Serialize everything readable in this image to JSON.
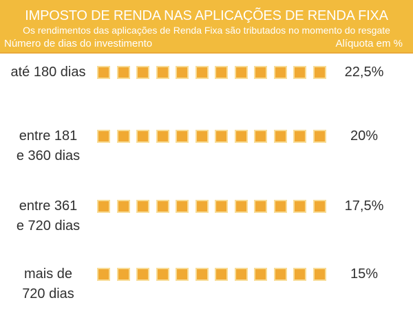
{
  "header": {
    "title": "IMPOSTO DE RENDA NAS APLICAÇÕES DE RENDA FIXA",
    "subtitle": "Os rendimentos das aplicações de Renda Fixa são tributados no momento do resgate",
    "left_axis_label": "Número de dias do investimento",
    "right_axis_label": "Alíquota em %"
  },
  "colors": {
    "band": "#F2BB3D",
    "band_border": "#E9A93A",
    "square_fill": "#F0A933",
    "square_border": "#F8DC96",
    "text_dark": "#303030",
    "text_light": "#FFFFFF"
  },
  "rows": [
    {
      "label_lines": [
        "até 180 dias"
      ],
      "squares": 12,
      "rate": "22,5%"
    },
    {
      "label_lines": [
        "entre 181",
        "e 360 dias"
      ],
      "squares": 12,
      "rate": "20%"
    },
    {
      "label_lines": [
        "entre 361",
        "e 720 dias"
      ],
      "squares": 12,
      "rate": "17,5%"
    },
    {
      "label_lines": [
        "mais de",
        "720 dias"
      ],
      "squares": 12,
      "rate": "15%"
    }
  ],
  "chart_data": {
    "type": "bar",
    "subtype": "pictogram",
    "title": "IMPOSTO DE RENDA NAS APLICAÇÕES DE RENDA FIXA",
    "subtitle": "Os rendimentos das aplicações de Renda Fixa são tributados no momento do resgate",
    "xlabel": "Número de dias do investimento",
    "ylabel": "Alíquota em %",
    "categories": [
      "até 180 dias",
      "entre 181 e 360 dias",
      "entre 361 e 720 dias",
      "mais de 720 dias"
    ],
    "values": [
      22.5,
      20,
      17.5,
      15
    ],
    "value_labels": [
      "22,5%",
      "20%",
      "17,5%",
      "15%"
    ],
    "units_per_row": 12,
    "legend": "none",
    "grid": false
  }
}
